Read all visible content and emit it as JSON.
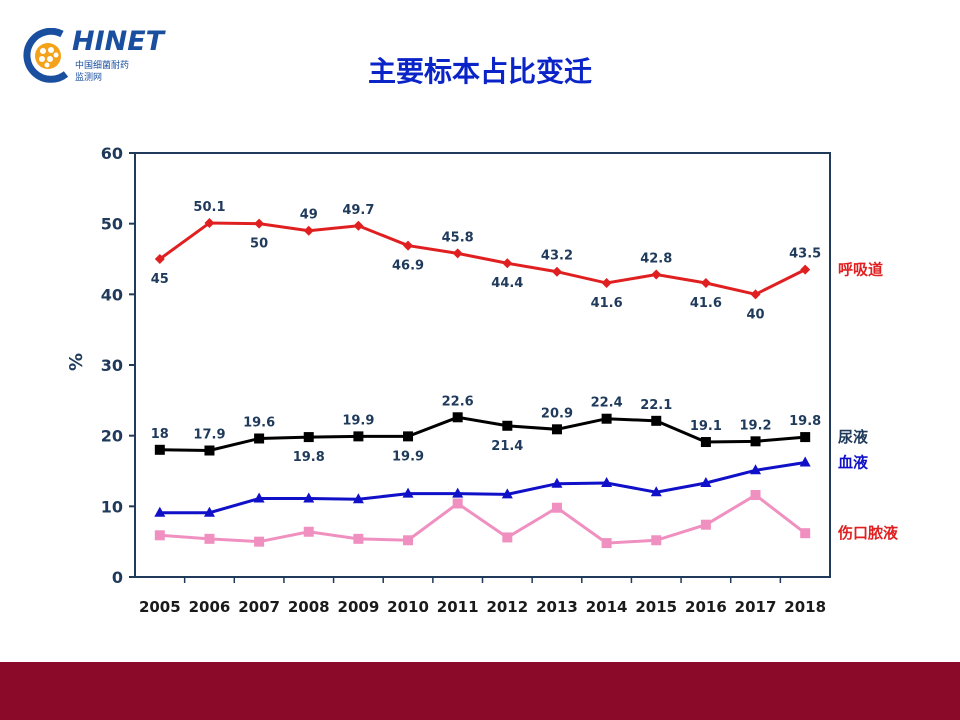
{
  "logo": {
    "text": "HINET",
    "sub1": "中国细菌耐药",
    "sub2": "监测网"
  },
  "title": "主要标本占比变迁",
  "colors": {
    "respiratory": "#e02020",
    "urine": "#000000",
    "blood": "#1010c8",
    "wound": "#f090c0",
    "axis": "#1f3a5a",
    "title": "#0b24c8",
    "footer": "#8b0a2a"
  },
  "chart_data": {
    "type": "line",
    "ylabel": "%",
    "ylim": [
      0,
      60
    ],
    "yticks": [
      0,
      10,
      20,
      30,
      40,
      50,
      60
    ],
    "categories": [
      "2005",
      "2006",
      "2007",
      "2008",
      "2009",
      "2010",
      "2011",
      "2012",
      "2013",
      "2014",
      "2015",
      "2016",
      "2017",
      "2018"
    ],
    "grid": false,
    "legend": "right (inline labels)",
    "series": [
      {
        "name": "呼吸道",
        "marker": "diamond",
        "values": [
          45,
          50.1,
          50,
          49,
          49.7,
          46.9,
          45.8,
          44.4,
          43.2,
          41.6,
          42.8,
          41.6,
          40,
          43.5
        ],
        "labels": [
          "45",
          "50.1",
          "50",
          "49",
          "49.7",
          "46.9",
          "45.8",
          "44.4",
          "43.2",
          "41.6",
          "42.8",
          "41.6",
          "40",
          "43.5"
        ]
      },
      {
        "name": "尿液",
        "marker": "square",
        "values": [
          18,
          17.9,
          19.6,
          19.8,
          19.9,
          19.9,
          22.6,
          21.4,
          20.9,
          22.4,
          22.1,
          19.1,
          19.2,
          19.8
        ],
        "labels": [
          "18",
          "17.9",
          "19.6",
          "19.8",
          "19.9",
          "19.9",
          "22.6",
          "21.4",
          "20.9",
          "22.4",
          "22.1",
          "19.1",
          "19.2",
          "19.8"
        ]
      },
      {
        "name": "血液",
        "marker": "triangle",
        "values": [
          9.1,
          9.1,
          11.1,
          11.1,
          11.0,
          11.8,
          11.8,
          11.7,
          13.2,
          13.3,
          12.0,
          13.3,
          15.1,
          16.2
        ]
      },
      {
        "name": "伤口脓液",
        "marker": "square",
        "values": [
          5.9,
          5.4,
          5.0,
          6.4,
          5.4,
          5.2,
          10.4,
          5.6,
          9.8,
          4.8,
          5.2,
          7.4,
          11.6,
          6.2
        ]
      }
    ]
  }
}
